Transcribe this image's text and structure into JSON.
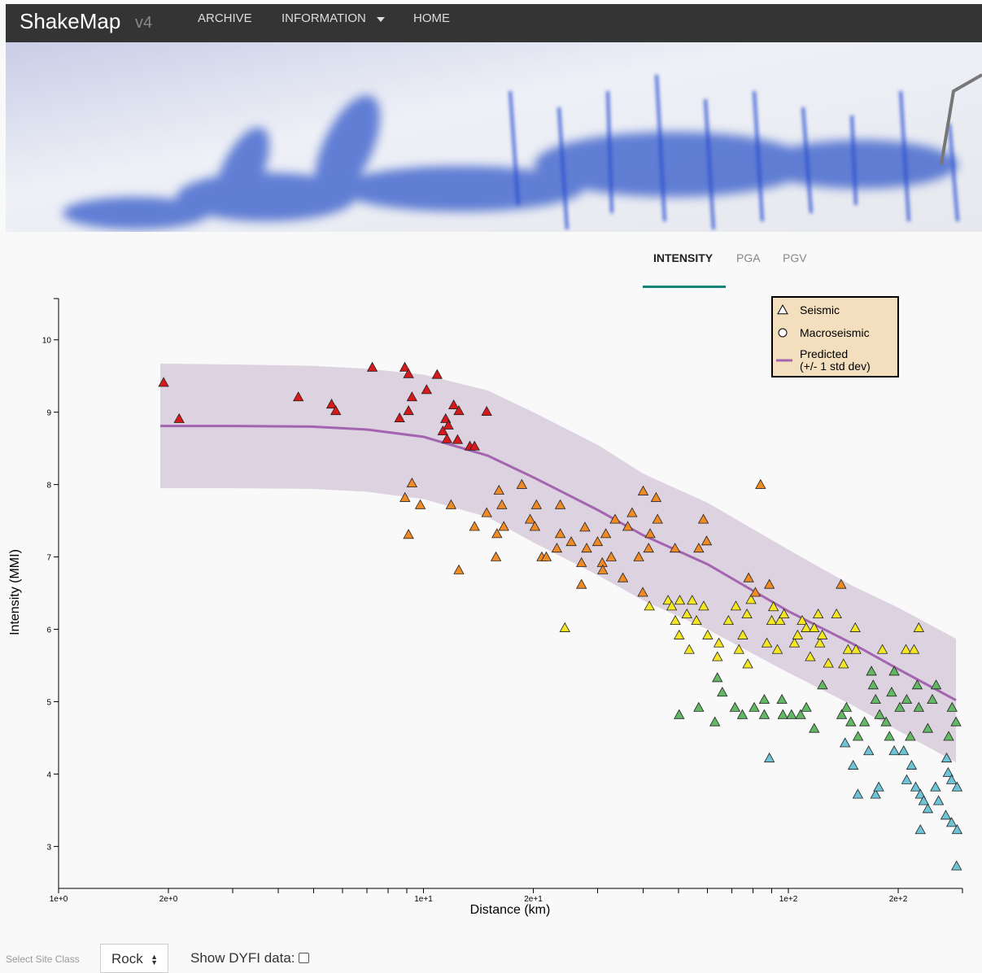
{
  "navbar": {
    "brand": "ShakeMap",
    "version": "v4",
    "links": [
      "ARCHIVE",
      "INFORMATION",
      "HOME"
    ]
  },
  "tabs": {
    "items": [
      "INTENSITY",
      "PGA",
      "PGV"
    ],
    "active": 0
  },
  "chart_data": {
    "type": "scatter",
    "x_label": "Distance (km)",
    "y_label": "Intensity (MMI)",
    "xscale": "log",
    "xlim": [
      1,
      300
    ],
    "ylim": [
      2.42,
      10.57
    ],
    "xticks": [
      {
        "value": 1,
        "label": "1e+0"
      },
      {
        "value": 2,
        "label": "2e+0"
      },
      {
        "value": 10,
        "label": "1e+1"
      },
      {
        "value": 20,
        "label": "2e+1"
      },
      {
        "value": 100,
        "label": "1e+2"
      },
      {
        "value": 200,
        "label": "2e+2"
      }
    ],
    "xminorticks": [
      3,
      4,
      5,
      6,
      7,
      8,
      9,
      30,
      40,
      50,
      60,
      70,
      80,
      90,
      300
    ],
    "yticks": [
      3,
      4,
      5,
      6,
      7,
      8,
      9,
      10
    ],
    "legend": "top-right",
    "color_scale": [
      {
        "min": 8.5,
        "color": "#d7191c"
      },
      {
        "min": 6.5,
        "color": "#f08a24"
      },
      {
        "min": 5.5,
        "color": "#f4e623"
      },
      {
        "min": 4.5,
        "color": "#63b963"
      },
      {
        "color": "#6cc4d6"
      }
    ],
    "series": [
      {
        "name": "Seismic",
        "marker": "triangle",
        "x": [
          1.94,
          2.14,
          4.54,
          5.6,
          5.75,
          7.24,
          8.89,
          9.1,
          9.3,
          8.6,
          9.1,
          10.2,
          10.9,
          11.5,
          11.7,
          11.3,
          11.6,
          12.1,
          12.5,
          12.4,
          13.4,
          13.8,
          14.9,
          9.3,
          8.9,
          9.8,
          9.1,
          11.9,
          12.5,
          13.8,
          14.9,
          16.1,
          15.9,
          16.4,
          16.6,
          15.8,
          18.6,
          19.6,
          20.2,
          20.4,
          21.1,
          21.7,
          23.2,
          23.7,
          23.7,
          25.4,
          27.1,
          27.1,
          27.7,
          28.0,
          30.0,
          30.9,
          31.0,
          31.6,
          32.7,
          33.5,
          35.2,
          36.3,
          37.3,
          38.9,
          40.0,
          41.4,
          41.8,
          43.4,
          43.8,
          48.9,
          56.8,
          58.5,
          59.7,
          83.9,
          139.5,
          24.4,
          39.9,
          41.6,
          46.8,
          47.9,
          49.0,
          50.4,
          50.2,
          52.7,
          53.5,
          54.5,
          56,
          58.6,
          60.1,
          63.9,
          64.5,
          68.5,
          71.8,
          73.2,
          75.0,
          77,
          77.8,
          77.4,
          79,
          81.2,
          87.3,
          88.7,
          90,
          91,
          93.3,
          94.9,
          97.3,
          103.9,
          106,
          109.1,
          111.9,
          114.8,
          117.7,
          120.7,
          122,
          123.8,
          135.5,
          141.6,
          145.7,
          152.5,
          153.2,
          181,
          210,
          221,
          227.7,
          50.2,
          56.8,
          62.9,
          63.9,
          65.9,
          71.4,
          74.8,
          80.6,
          85.9,
          85.9,
          96,
          96.6,
          102,
          108,
          112,
          117.7,
          124,
          128.7,
          140,
          144.3,
          148.3,
          155.2,
          161.7,
          168.9,
          170.8,
          173.4,
          177.8,
          185.2,
          189.2,
          191.8,
          195,
          202,
          211,
          215.8,
          225.5,
          227.7,
          241,
          248,
          254,
          275,
          281,
          288,
          88.7,
          143,
          150.5,
          155,
          166,
          173.4,
          176.9,
          195,
          207,
          211,
          217.6,
          223.3,
          230,
          230,
          234.9,
          241,
          253,
          258,
          270,
          271.5,
          274,
          280,
          280,
          290,
          290,
          289
        ],
        "values": [
          9.41,
          8.91,
          9.21,
          9.11,
          9.02,
          9.62,
          9.62,
          9.53,
          9.21,
          8.92,
          9.02,
          9.31,
          9.52,
          8.91,
          8.82,
          8.74,
          8.63,
          9.1,
          9.02,
          8.62,
          8.53,
          8.53,
          9.01,
          8.02,
          7.82,
          7.72,
          7.31,
          7.72,
          6.82,
          7.42,
          7.61,
          7.92,
          7.32,
          7.72,
          7.42,
          7.0,
          8.0,
          7.52,
          7.42,
          7.72,
          7.0,
          7.0,
          7.12,
          7.72,
          7.32,
          7.21,
          6.62,
          6.92,
          7.41,
          7.12,
          7.21,
          6.92,
          6.82,
          7.32,
          7.0,
          7.52,
          6.71,
          7.42,
          7.61,
          7.0,
          7.91,
          7.12,
          7.32,
          7.82,
          7.52,
          7.12,
          7.12,
          7.52,
          7.22,
          8.0,
          6.62,
          6.02,
          6.51,
          6.32,
          6.4,
          6.32,
          6.12,
          6.4,
          5.92,
          6.21,
          5.72,
          6.4,
          6.12,
          6.32,
          5.92,
          5.62,
          5.81,
          6.12,
          6.32,
          5.72,
          5.92,
          6.21,
          6.71,
          5.52,
          6.41,
          6.51,
          5.81,
          6.62,
          6.12,
          6.31,
          5.72,
          6.12,
          6.21,
          5.81,
          5.92,
          6.12,
          6.02,
          5.62,
          6.02,
          6.21,
          5.81,
          5.92,
          6.21,
          5.52,
          5.72,
          6.02,
          5.72,
          5.72,
          5.72,
          5.72,
          6.02,
          4.82,
          4.92,
          4.72,
          5.33,
          5.13,
          4.92,
          4.82,
          4.92,
          5.03,
          4.82,
          5.03,
          4.82,
          4.82,
          4.82,
          4.92,
          4.63,
          5.23,
          5.53,
          4.82,
          4.92,
          4.72,
          4.52,
          4.72,
          5.42,
          5.23,
          5.03,
          4.82,
          4.72,
          4.52,
          5.13,
          5.42,
          4.92,
          5.03,
          4.52,
          5.23,
          4.92,
          4.63,
          5.03,
          5.23,
          4.52,
          4.92,
          4.72,
          4.22,
          4.43,
          4.12,
          3.72,
          4.32,
          3.72,
          3.82,
          4.32,
          4.32,
          3.92,
          4.12,
          3.82,
          3.23,
          3.72,
          3.63,
          3.52,
          3.82,
          3.63,
          3.43,
          4.22,
          4.02,
          3.92,
          3.33,
          3.82,
          3.23,
          2.73
        ]
      },
      {
        "name": "Macroseismic",
        "marker": "circle",
        "x": [],
        "values": []
      }
    ],
    "predicted": {
      "name": "Predicted",
      "band_label": "(+/- 1 std dev)",
      "color": "#a465b0",
      "band_color": "#ddd2e0",
      "x": [
        1.9,
        3,
        5,
        7,
        10,
        15,
        20,
        30,
        40,
        60,
        100,
        150,
        200,
        288
      ],
      "values": [
        8.81,
        8.81,
        8.8,
        8.76,
        8.66,
        8.4,
        8.1,
        7.65,
        7.3,
        6.9,
        6.25,
        5.8,
        5.45,
        5.02
      ],
      "upper": [
        9.67,
        9.66,
        9.64,
        9.6,
        9.52,
        9.3,
        9.0,
        8.55,
        8.15,
        7.75,
        7.1,
        6.6,
        6.3,
        5.87
      ],
      "lower": [
        7.95,
        7.95,
        7.94,
        7.9,
        7.8,
        7.55,
        7.2,
        6.75,
        6.4,
        6.0,
        5.4,
        4.95,
        4.6,
        4.16
      ]
    }
  },
  "controls": {
    "site_class_label": "Select Site Class",
    "site_class": "Rock",
    "dyfi_label": "Show DYFI data:"
  }
}
